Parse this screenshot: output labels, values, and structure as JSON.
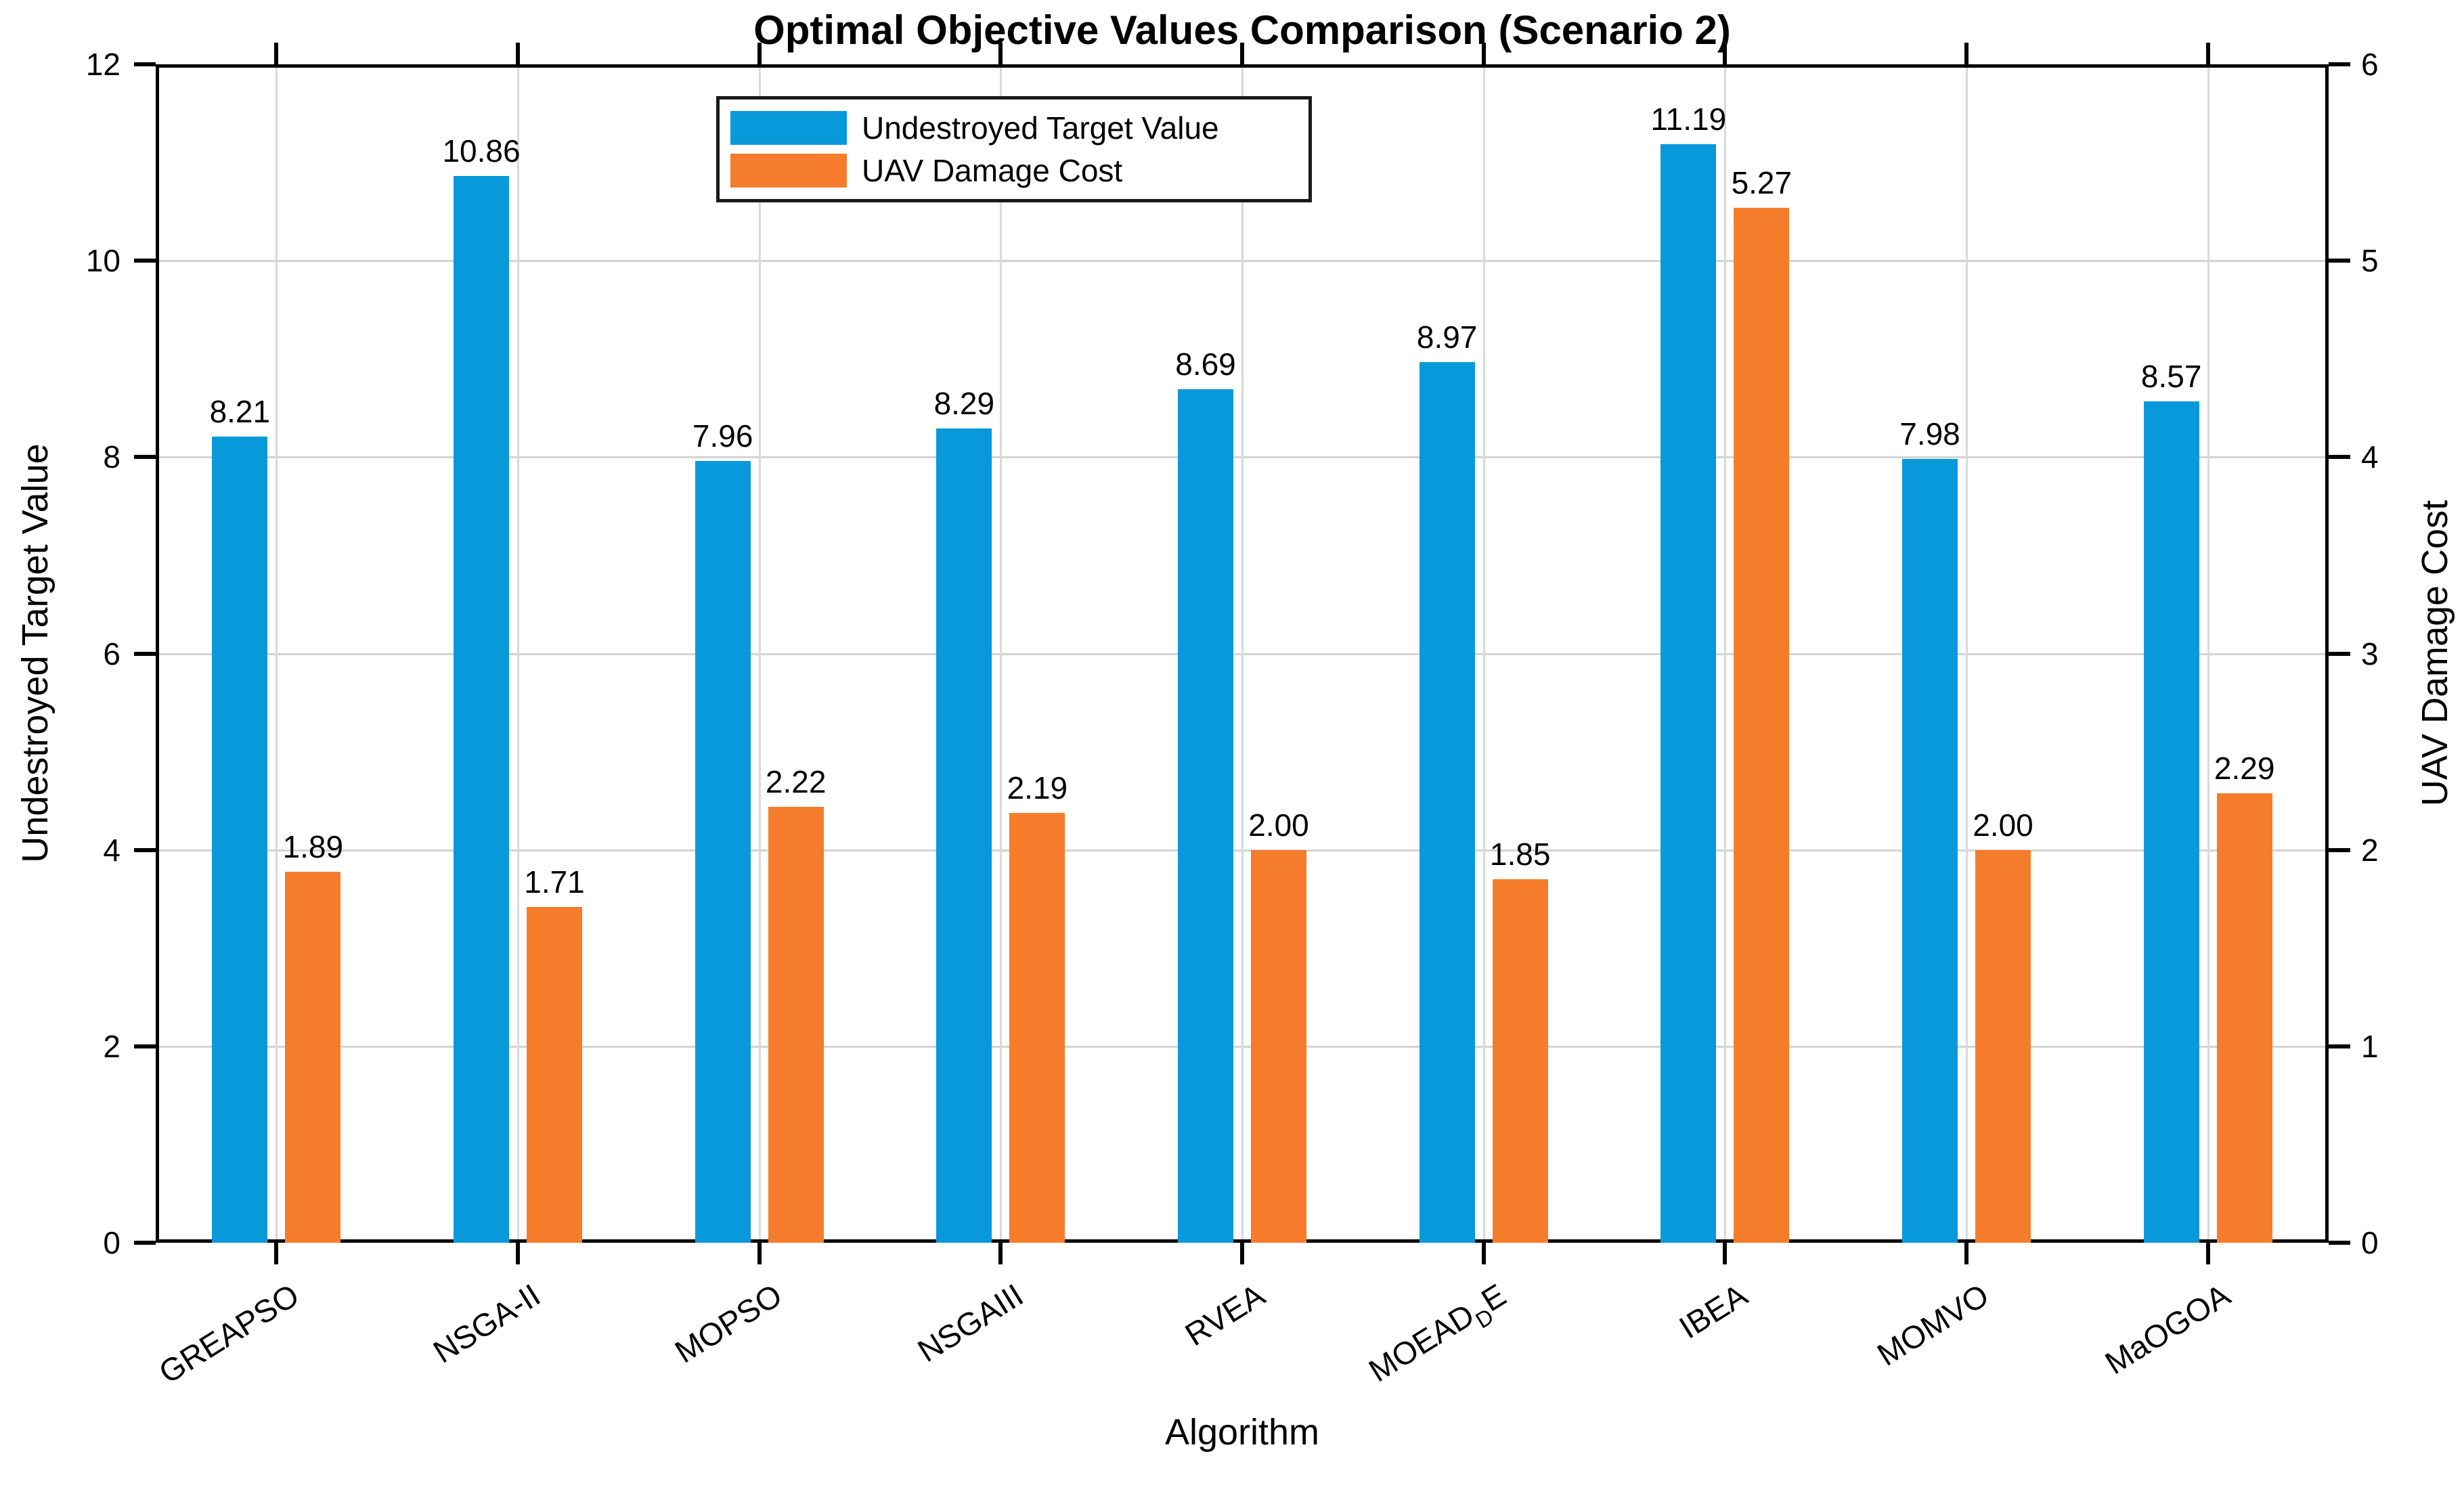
{
  "chart_data": {
    "type": "bar",
    "title": "Optimal Objective Values Comparison (Scenario 2)",
    "xlabel": "Algorithm",
    "categories": [
      {
        "main": "GREAPSO"
      },
      {
        "main": "NSGA-II"
      },
      {
        "main": "MOPSO"
      },
      {
        "main": "NSGAIII"
      },
      {
        "main": "RVEA"
      },
      {
        "main": "MOEAD",
        "sub": "D",
        "tail": "E"
      },
      {
        "main": "IBEA"
      },
      {
        "main": "MOMVO"
      },
      {
        "main": "MaOGOA"
      }
    ],
    "series": [
      {
        "name": "Undestroyed Target Value",
        "axis": "left",
        "color": "#0899DB",
        "values": [
          8.21,
          10.86,
          7.96,
          8.29,
          8.69,
          8.97,
          11.19,
          7.98,
          8.57
        ],
        "labels": [
          "8.21",
          "10.86",
          "7.96",
          "8.29",
          "8.69",
          "8.97",
          "11.19",
          "7.98",
          "8.57"
        ]
      },
      {
        "name": "UAV Damage Cost",
        "axis": "right",
        "color": "#F57C2A",
        "values": [
          1.89,
          1.71,
          2.22,
          2.19,
          2.0,
          1.85,
          5.27,
          2.0,
          2.29
        ],
        "labels": [
          "1.89",
          "1.71",
          "2.22",
          "2.19",
          "2.00",
          "1.85",
          "5.27",
          "2.00",
          "2.29"
        ]
      }
    ],
    "axes": {
      "left": {
        "label": "Undestroyed Target Value",
        "min": 0,
        "max": 12,
        "ticks": [
          0,
          2,
          4,
          6,
          8,
          10,
          12
        ]
      },
      "right": {
        "label": "UAV Damage Cost",
        "min": 0,
        "max": 6,
        "ticks": [
          0,
          1,
          2,
          3,
          4,
          5,
          6
        ]
      }
    },
    "grid": true,
    "legend_position": "top-center"
  },
  "colors": {
    "series_blue": "#0899DB",
    "series_orange": "#F57C2A",
    "grid": "#D3D3D3",
    "axis": "#000000",
    "background": "#FFFFFF"
  }
}
